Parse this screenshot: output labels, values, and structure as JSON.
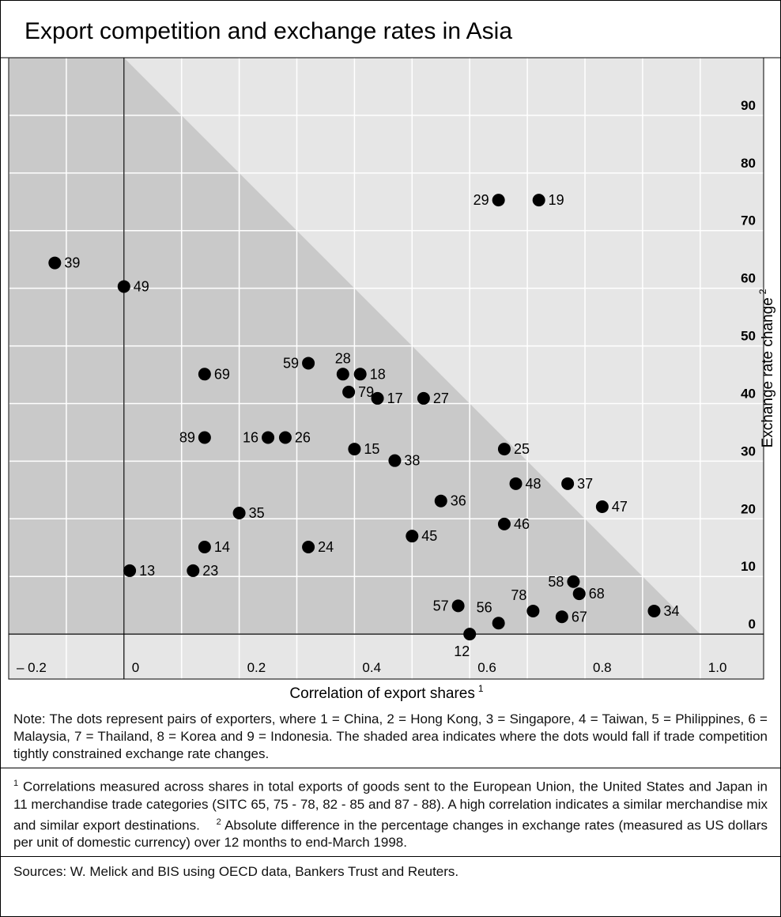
{
  "chart_data": {
    "type": "scatter",
    "title": "Export competition and exchange rates in Asia",
    "x_label": "Correlation of export shares",
    "x_label_note": "1",
    "y_label": "Exchange rate change",
    "y_label_note": "2",
    "xlim": [
      -0.2,
      1.11
    ],
    "ylim": [
      -7.8,
      100
    ],
    "xticks": [
      {
        "value": -0.2,
        "label": "– 0.2"
      },
      0,
      0.2,
      0.4,
      0.6,
      0.8,
      {
        "value": 1,
        "label": "1.0"
      }
    ],
    "yticks": [
      0,
      10,
      20,
      30,
      40,
      50,
      60,
      70,
      80,
      90
    ],
    "grid": true,
    "color": "#000000",
    "series": [
      {
        "labels": [
          "39",
          "49",
          "29",
          "19",
          "69",
          "59",
          "28",
          "18",
          "79",
          "17",
          "27",
          "89",
          "16",
          "26",
          "15",
          "38",
          "25",
          "48",
          "37",
          "47",
          "36",
          "46",
          "35",
          "45",
          "14",
          "24",
          "13",
          "23",
          "58",
          "68",
          "57",
          "56",
          "78",
          "67",
          "34",
          "12"
        ],
        "x": [
          -0.12,
          0.0,
          0.65,
          0.72,
          0.14,
          0.32,
          0.38,
          0.41,
          0.39,
          0.44,
          0.52,
          0.14,
          0.25,
          0.28,
          0.4,
          0.47,
          0.66,
          0.68,
          0.77,
          0.83,
          0.55,
          0.66,
          0.2,
          0.5,
          0.14,
          0.32,
          0.01,
          0.12,
          0.78,
          0.79,
          0.58,
          0.65,
          0.71,
          0.76,
          0.92,
          0.6
        ],
        "values": [
          64.4,
          60.3,
          75.3,
          75.3,
          45.1,
          47.0,
          45.1,
          45.1,
          42.0,
          40.9,
          40.9,
          34.1,
          34.1,
          34.1,
          32.1,
          30.1,
          32.1,
          26.1,
          26.1,
          22.1,
          23.1,
          19.1,
          21.0,
          17.0,
          15.1,
          15.1,
          11.0,
          11.0,
          9.1,
          7.0,
          4.9,
          1.9,
          4.0,
          3.0,
          4.0,
          0
        ]
      }
    ]
  },
  "notes": {
    "note": "Note: The dots represent pairs of exporters, where 1 = China, 2 = Hong Kong, 3 = Singapore, 4 = Taiwan, 5 = Philippines, 6 = Malaysia, 7 = Thailand, 8 = Korea and 9 = Indonesia. The shaded area indicates where the dots would fall if trade competition tightly constrained exchange rate changes.",
    "footnotes": [
      {
        "mark": "1",
        "text": "Correlations measured across shares in total exports of goods sent to the European Union, the United States and Japan in 11 merchandise trade categories (SITC 65, 75 - 78, 82 - 85 and 87 - 88). A high correlation indicates a similar merchandise mix and similar export destinations."
      },
      {
        "mark": "2",
        "text": "Absolute difference in the percentage changes in exchange rates (measured as US dollars per unit of domestic currency) over 12 months to end-March 1998."
      }
    ],
    "sources": "Sources: W. Melick and BIS using OECD data, Bankers Trust and Reuters."
  }
}
